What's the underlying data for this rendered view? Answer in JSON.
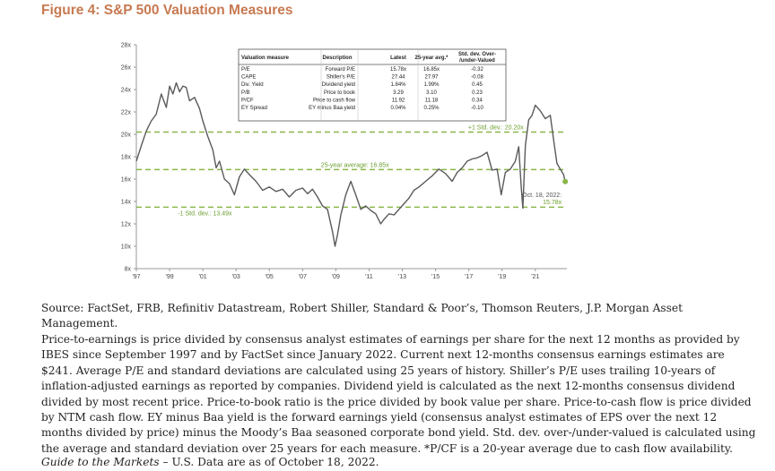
{
  "figure_title": "Figure 4: S&P 500 Valuation Measures",
  "source": "Source: FactSet, FRB, Refinitiv Datastream, Robert Shiller, Standard & Poor’s, Thomson Reuters, J.P. Morgan Asset Management.",
  "notes": "Price-to-earnings is price divided by consensus analyst estimates of earnings per share for the next 12 months as provided by IBES since September 1997 and by FactSet since January 2022. Current next 12-months consensus earnings estimates are $241. Average P/E and standard deviations are calculated using 25 years of history. Shiller’s P/E uses trailing 10-years of inflation-adjusted earnings as reported by companies. Dividend yield is calculated as the next 12-months consensus dividend divided by most recent price. Price-to-book ratio is the price divided by book value per share. Price-to-cash flow is price divided by NTM cash flow. EY minus Baa yield is the forward earnings yield (consensus analyst estimates of EPS over the next 12 months divided by price) minus the Moody’s Baa seasoned corporate bond yield. Std. dev. over-/under-valued is calculated using the average and standard deviation over 25 years for each measure. *P/CF is a 20-year average due to cash flow availability.",
  "guide_italic": "Guide to the Markets",
  "guide_rest": " – U.S. Data are as of October 18, 2022.",
  "colors": {
    "title": "#c77a52",
    "line": "#5a5a5a",
    "ref_line": "#8ab64a",
    "ref_text": "#6b9e2e"
  },
  "table": {
    "headers": [
      "Valuation measure",
      "Description",
      "Latest",
      "25-year avg.*",
      "Std. dev. Over-/under-Valued"
    ],
    "rows": [
      [
        "P/E",
        "Forward P/E",
        "15.78x",
        "16.85x",
        "-0.32"
      ],
      [
        "CAPE",
        "Shiller's P/E",
        "27.44",
        "27.97",
        "-0.08"
      ],
      [
        "Div. Yield",
        "Dividend yield",
        "1.84%",
        "1.99%",
        "0.45"
      ],
      [
        "P/B",
        "Price to book",
        "3.29",
        "3.10",
        "0.23"
      ],
      [
        "P/CF",
        "Price to cash flow",
        "11.92",
        "11.18",
        "0.34"
      ],
      [
        "EY Spread",
        "EY minus Baa yield",
        "0.04%",
        "0.25%",
        "-0.10"
      ]
    ]
  },
  "chart_data": {
    "type": "line",
    "title": "",
    "xlabel": "",
    "ylabel": "",
    "ylim": [
      8,
      28
    ],
    "xlim": [
      1997,
      2022.9
    ],
    "y_ticks": [
      "8x",
      "10x",
      "12x",
      "14x",
      "16x",
      "18x",
      "20x",
      "22x",
      "24x",
      "26x",
      "28x"
    ],
    "x_ticks": [
      "'97",
      "'99",
      "'01",
      "'03",
      "'05",
      "'07",
      "'09",
      "'11",
      "'13",
      "'15",
      "'17",
      "'19",
      "'21"
    ],
    "grid": false,
    "reference_lines": [
      {
        "label": "+1 Std. dev.: 20.20x",
        "value": 20.2
      },
      {
        "label": "25-year average: 16.85x",
        "value": 16.85
      },
      {
        "label": "-1 Std. dev.: 13.49x",
        "value": 13.49
      }
    ],
    "annotation": {
      "label_line1": "Oct. 18, 2022:",
      "label_line2": "15.78x",
      "x": 2022.8,
      "y": 15.78
    },
    "series": [
      {
        "x": [
          1997.0,
          1997.3,
          1997.6,
          1997.9,
          1998.2,
          1998.5,
          1998.8,
          1999.0,
          1999.2,
          1999.4,
          1999.6,
          1999.8,
          2000.0,
          2000.2,
          2000.5,
          2000.8,
          2001.0,
          2001.3,
          2001.6,
          2001.8,
          2002.0,
          2002.3,
          2002.6,
          2002.9,
          2003.2,
          2003.5,
          2003.8,
          2004.2,
          2004.6,
          2005.0,
          2005.4,
          2005.8,
          2006.2,
          2006.6,
          2007.0,
          2007.3,
          2007.6,
          2007.9,
          2008.2,
          2008.5,
          2008.8,
          2008.95,
          2009.1,
          2009.3,
          2009.6,
          2009.9,
          2010.2,
          2010.5,
          2010.8,
          2011.1,
          2011.4,
          2011.7,
          2011.9,
          2012.2,
          2012.5,
          2012.8,
          2013.1,
          2013.4,
          2013.7,
          2014.0,
          2014.4,
          2014.8,
          2015.2,
          2015.6,
          2016.0,
          2016.3,
          2016.6,
          2016.9,
          2017.2,
          2017.5,
          2017.8,
          2018.1,
          2018.4,
          2018.7,
          2018.95,
          2019.2,
          2019.5,
          2019.8,
          2020.0,
          2020.15,
          2020.25,
          2020.4,
          2020.6,
          2020.8,
          2021.0,
          2021.3,
          2021.6,
          2021.9,
          2022.1,
          2022.3,
          2022.5,
          2022.7,
          2022.8
        ],
        "y": [
          17.6,
          19.0,
          20.3,
          21.2,
          21.8,
          23.6,
          22.4,
          24.3,
          23.6,
          24.6,
          23.8,
          24.3,
          24.2,
          23.0,
          23.3,
          22.3,
          21.2,
          19.8,
          18.6,
          17.0,
          17.6,
          16.0,
          15.6,
          14.6,
          16.2,
          16.9,
          16.4,
          15.8,
          15.0,
          15.3,
          14.9,
          15.1,
          14.4,
          15.0,
          15.2,
          14.7,
          15.1,
          14.4,
          13.6,
          13.3,
          11.3,
          10.0,
          11.0,
          12.8,
          14.6,
          15.8,
          14.6,
          13.3,
          13.6,
          13.2,
          12.9,
          12.0,
          12.4,
          12.9,
          12.8,
          13.3,
          13.8,
          14.3,
          15.0,
          15.3,
          15.8,
          16.3,
          16.9,
          16.5,
          15.8,
          16.6,
          17.0,
          17.6,
          17.8,
          17.9,
          18.1,
          18.4,
          16.8,
          16.9,
          14.6,
          16.6,
          16.9,
          17.6,
          18.9,
          15.4,
          13.4,
          19.0,
          21.3,
          21.7,
          22.6,
          22.1,
          21.4,
          21.7,
          19.5,
          17.4,
          16.9,
          16.4,
          15.78
        ],
        "markers_ticks": [
          [
            2003.5,
            13.2
          ],
          [
            2009.0,
            10.0
          ]
        ]
      }
    ]
  }
}
